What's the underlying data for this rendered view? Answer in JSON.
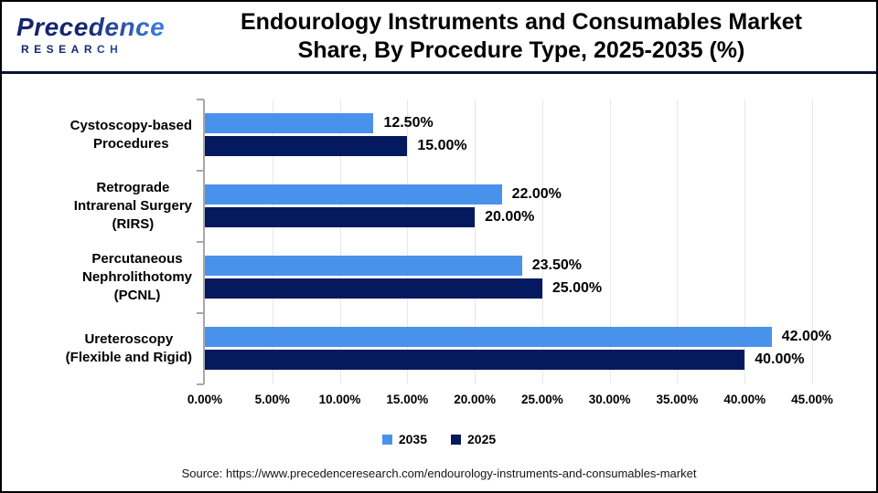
{
  "header": {
    "logo_line1": "Precedence",
    "logo_line2": "RESEARCH",
    "title_line1": "Endourology Instruments and Consumables Market",
    "title_line2": "Share, By Procedure Type, 2025-2035 (%)"
  },
  "chart_data": {
    "type": "bar",
    "orientation": "horizontal",
    "title": "Endourology Instruments and Consumables Market Share, By Procedure Type, 2025-2035 (%)",
    "categories": [
      [
        "Cystoscopy-based",
        "Procedures"
      ],
      [
        "Retrograde",
        "Intrarenal Surgery",
        "(RIRS)"
      ],
      [
        "Percutaneous",
        "Nephrolithotomy",
        "(PCNL)"
      ],
      [
        "Ureteroscopy",
        "(Flexible and Rigid)"
      ]
    ],
    "series": [
      {
        "name": "2035",
        "color": "#4992EC",
        "values": [
          12.5,
          22.0,
          23.5,
          42.0
        ],
        "labels": [
          "12.50%",
          "22.00%",
          "23.50%",
          "42.00%"
        ]
      },
      {
        "name": "2025",
        "color": "#05195F",
        "values": [
          15.0,
          20.0,
          25.0,
          40.0
        ],
        "labels": [
          "15.00%",
          "20.00%",
          "25.00%",
          "40.00%"
        ]
      }
    ],
    "xlim": [
      0,
      45
    ],
    "x_ticks": [
      "0.00%",
      "5.00%",
      "10.00%",
      "15.00%",
      "20.00%",
      "25.00%",
      "30.00%",
      "35.00%",
      "40.00%",
      "45.00%"
    ],
    "grid": true,
    "legend_position": "bottom"
  },
  "source": "Source: https://www.precedenceresearch.com/endourology-instruments-and-consumables-market",
  "colors": {
    "bar_2035": "#4992EC",
    "bar_2025": "#05195F",
    "header_divider": "#0B1038",
    "axis": "#A8A8A8",
    "gridline": "#E7E7E7",
    "logo_navy": "#16246E",
    "logo_blue": "#3A7BD9"
  }
}
